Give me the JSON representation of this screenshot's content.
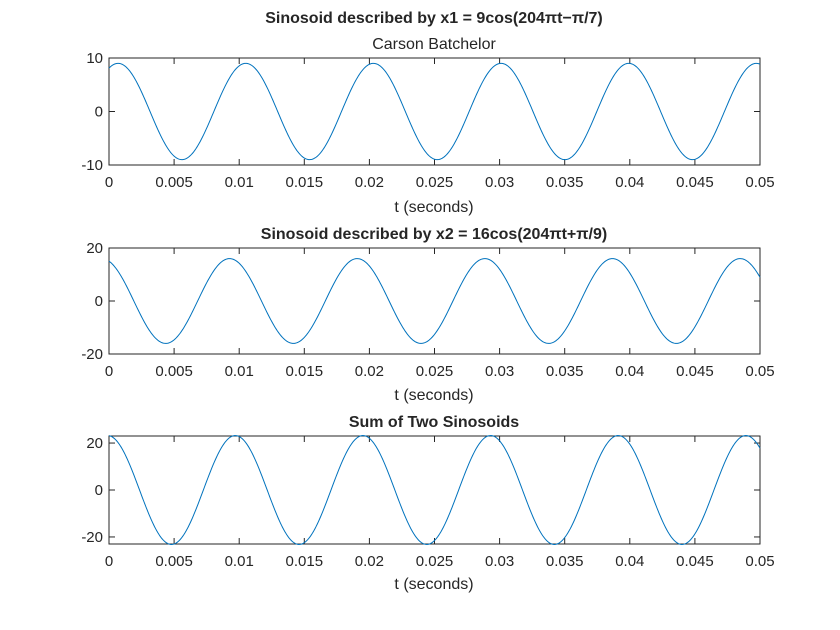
{
  "chart_data": [
    {
      "type": "line",
      "title": "Sinosoid described by x1 = 9cos(204πt−π/7)",
      "subtitle": "Carson Batchelor",
      "xlabel": "t (seconds)",
      "ylabel": "",
      "xlim": [
        0,
        0.05
      ],
      "ylim": [
        -10,
        10
      ],
      "xticks": [
        0,
        0.005,
        0.01,
        0.015,
        0.02,
        0.025,
        0.03,
        0.035,
        0.04,
        0.045,
        0.05
      ],
      "xtick_labels": [
        "0",
        "0.005",
        "0.01",
        "0.015",
        "0.02",
        "0.025",
        "0.03",
        "0.035",
        "0.04",
        "0.045",
        "0.05"
      ],
      "yticks": [
        -10,
        0,
        10
      ],
      "ytick_labels": [
        "-10",
        "0",
        "10"
      ],
      "grid": false,
      "color": "#0072bd",
      "series": [
        {
          "amplitude": 9,
          "angular_frequency": 640.88,
          "phase": -0.4488
        }
      ]
    },
    {
      "type": "line",
      "title": "Sinosoid described by x2 = 16cos(204πt+π/9)",
      "subtitle": "",
      "xlabel": "t (seconds)",
      "ylabel": "",
      "xlim": [
        0,
        0.05
      ],
      "ylim": [
        -20,
        20
      ],
      "xticks": [
        0,
        0.005,
        0.01,
        0.015,
        0.02,
        0.025,
        0.03,
        0.035,
        0.04,
        0.045,
        0.05
      ],
      "xtick_labels": [
        "0",
        "0.005",
        "0.01",
        "0.015",
        "0.02",
        "0.025",
        "0.03",
        "0.035",
        "0.04",
        "0.045",
        "0.05"
      ],
      "yticks": [
        -20,
        0,
        20
      ],
      "ytick_labels": [
        "-20",
        "0",
        "20"
      ],
      "grid": false,
      "color": "#0072bd",
      "series": [
        {
          "amplitude": 16,
          "angular_frequency": 640.88,
          "phase": 0.3491
        }
      ]
    },
    {
      "type": "line",
      "title": "Sum of Two Sinosoids",
      "subtitle": "",
      "xlabel": "t (seconds)",
      "ylabel": "",
      "xlim": [
        0,
        0.05
      ],
      "ylim": [
        -23,
        23
      ],
      "xticks": [
        0,
        0.005,
        0.01,
        0.015,
        0.02,
        0.025,
        0.03,
        0.035,
        0.04,
        0.045,
        0.05
      ],
      "xtick_labels": [
        "0",
        "0.005",
        "0.01",
        "0.015",
        "0.02",
        "0.025",
        "0.03",
        "0.035",
        "0.04",
        "0.045",
        "0.05"
      ],
      "yticks": [
        -20,
        0,
        20
      ],
      "ytick_labels": [
        "-20",
        "0",
        "20"
      ],
      "grid": false,
      "color": "#0072bd",
      "series": [
        {
          "amplitude": 9,
          "angular_frequency": 640.88,
          "phase": -0.4488
        },
        {
          "amplitude": 16,
          "angular_frequency": 640.88,
          "phase": 0.3491
        }
      ]
    }
  ]
}
